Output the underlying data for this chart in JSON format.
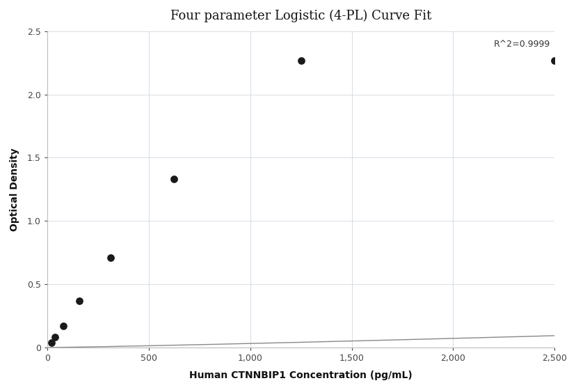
{
  "title": "Four parameter Logistic (4-PL) Curve Fit",
  "xlabel": "Human CTNNBIP1 Concentration (pg/mL)",
  "ylabel": "Optical Density",
  "points_x": [
    19.53,
    39.06,
    78.13,
    156.25,
    312.5,
    625.0,
    1250.0,
    2500.0
  ],
  "points_y": [
    0.04,
    0.08,
    0.17,
    0.37,
    0.71,
    1.33,
    2.27,
    2.27
  ],
  "r2_text": "R^2=0.9999",
  "r2_x": 2480,
  "r2_y": 2.36,
  "xlim": [
    0,
    2500
  ],
  "ylim": [
    0,
    2.5
  ],
  "xticks": [
    0,
    500,
    1000,
    1500,
    2000,
    2500
  ],
  "yticks": [
    0,
    0.5,
    1.0,
    1.5,
    2.0,
    2.5
  ],
  "dot_color": "#1a1a1a",
  "line_color": "#888888",
  "background_color": "#ffffff",
  "grid_color": "#d0d8e0",
  "title_fontsize": 13,
  "label_fontsize": 10,
  "annotation_fontsize": 9
}
